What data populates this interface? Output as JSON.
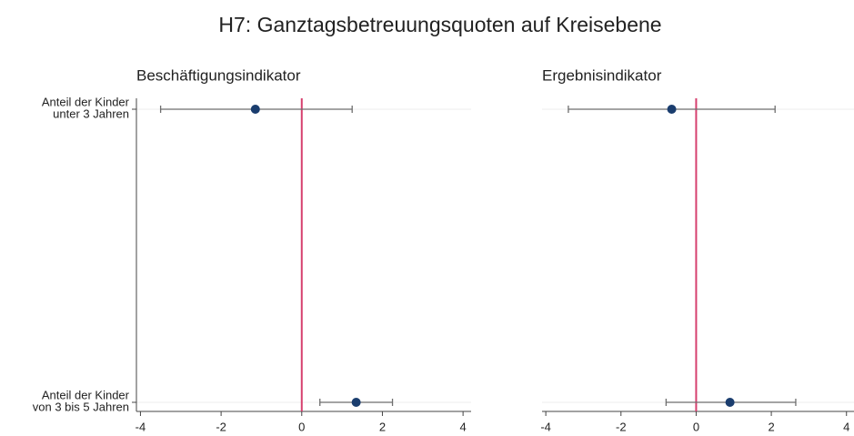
{
  "title": "H7: Ganztagsbetreuungsquoten auf Kreisebene",
  "chart_data": [
    {
      "type": "coefplot",
      "title": "Beschäftigungsindikator",
      "categories": [
        [
          "Anteil der Kinder",
          "unter 3 Jahren"
        ],
        [
          "Anteil der Kinder",
          "von 3 bis 5 Jahren"
        ]
      ],
      "values": [
        -1.15,
        1.35
      ],
      "ci_low": [
        -3.5,
        0.45
      ],
      "ci_high": [
        1.25,
        2.25
      ],
      "xlim": [
        -4.1,
        4.2
      ],
      "xticks": [
        -4,
        -2,
        0,
        2,
        4
      ],
      "ref_line": 0,
      "color": "#1a3d6e",
      "ci_color": "#6e6e6e",
      "ref_color": "#d6406e",
      "y_axis_line": true
    },
    {
      "type": "coefplot",
      "title": "Ergebnisindikator",
      "categories": [
        null,
        null
      ],
      "values": [
        -0.65,
        0.9
      ],
      "ci_low": [
        -3.4,
        -0.8
      ],
      "ci_high": [
        2.1,
        2.65
      ],
      "xlim": [
        -4.1,
        4.2
      ],
      "xticks": [
        -4,
        -2,
        0,
        2,
        4
      ],
      "ref_line": 0,
      "color": "#1a3d6e",
      "ci_color": "#6e6e6e",
      "ref_color": "#d6406e",
      "y_axis_line": false
    }
  ]
}
